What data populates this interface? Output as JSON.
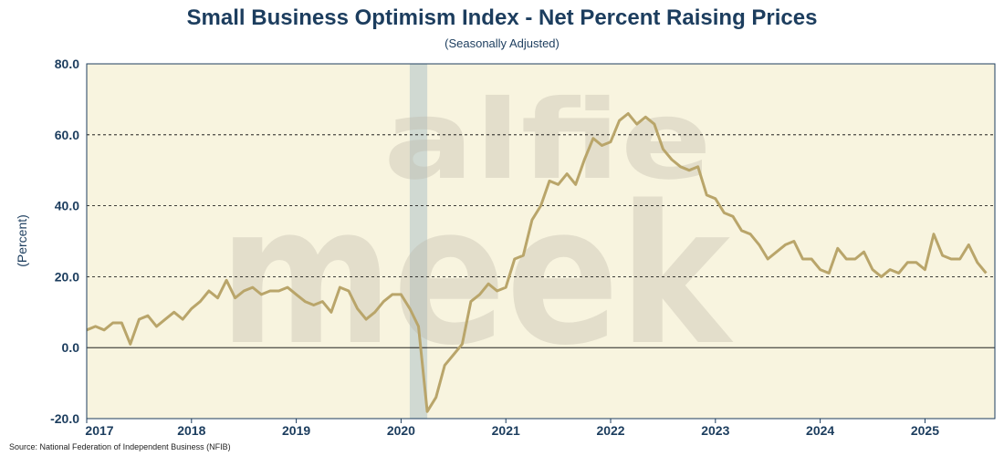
{
  "chart_data": {
    "type": "line",
    "title": "Small Business Optimism Index - Net Percent Raising Prices",
    "subtitle": "(Seasonally Adjusted)",
    "ylabel": "(Percent)",
    "xlabel": "",
    "ylim": [
      -20,
      80
    ],
    "yticks": [
      "80.0",
      "60.0",
      "40.0",
      "20.0",
      "0.0",
      "-20.0"
    ],
    "ytick_values": [
      80,
      60,
      40,
      20,
      0,
      -20
    ],
    "xticks": [
      "2017",
      "2018",
      "2019",
      "2020",
      "2021",
      "2022",
      "2023",
      "2024",
      "2025"
    ],
    "xtick_values": [
      2017,
      2018,
      2019,
      2020,
      2021,
      2022,
      2023,
      2024,
      2025
    ],
    "xlim": [
      2017.0,
      2025.667
    ],
    "grid": "dashed horizontal",
    "recession_band": [
      2020.083,
      2020.25
    ],
    "colors": {
      "line": "#b9a56a",
      "plot_bg": "#f8f4df",
      "text": "#1c3d5e",
      "band": "#c9d3d0"
    },
    "series": [
      {
        "name": "Net Percent Raising Prices",
        "start_year": 2017,
        "values": [
          5,
          6,
          5,
          7,
          7,
          1,
          8,
          9,
          6,
          8,
          10,
          8,
          11,
          13,
          16,
          14,
          19,
          14,
          16,
          17,
          15,
          16,
          16,
          17,
          15,
          13,
          12,
          13,
          10,
          17,
          16,
          11,
          8,
          10,
          13,
          15,
          15,
          11,
          6,
          -18,
          -14,
          -5,
          -2,
          1,
          13,
          15,
          18,
          16,
          17,
          25,
          26,
          36,
          40,
          47,
          46,
          49,
          46,
          53,
          59,
          57,
          58,
          64,
          66,
          63,
          65,
          63,
          56,
          53,
          51,
          50,
          51,
          43,
          42,
          38,
          37,
          33,
          32,
          29,
          25,
          27,
          29,
          30,
          25,
          25,
          22,
          21,
          28,
          25,
          25,
          27,
          22,
          20,
          22,
          21,
          24,
          24,
          22,
          32,
          26,
          25,
          25,
          29,
          24,
          21
        ]
      }
    ]
  },
  "watermark": {
    "line1": "alfie",
    "line2": "meek"
  },
  "source": "Source: National Federation of Independent Business (NFIB)"
}
